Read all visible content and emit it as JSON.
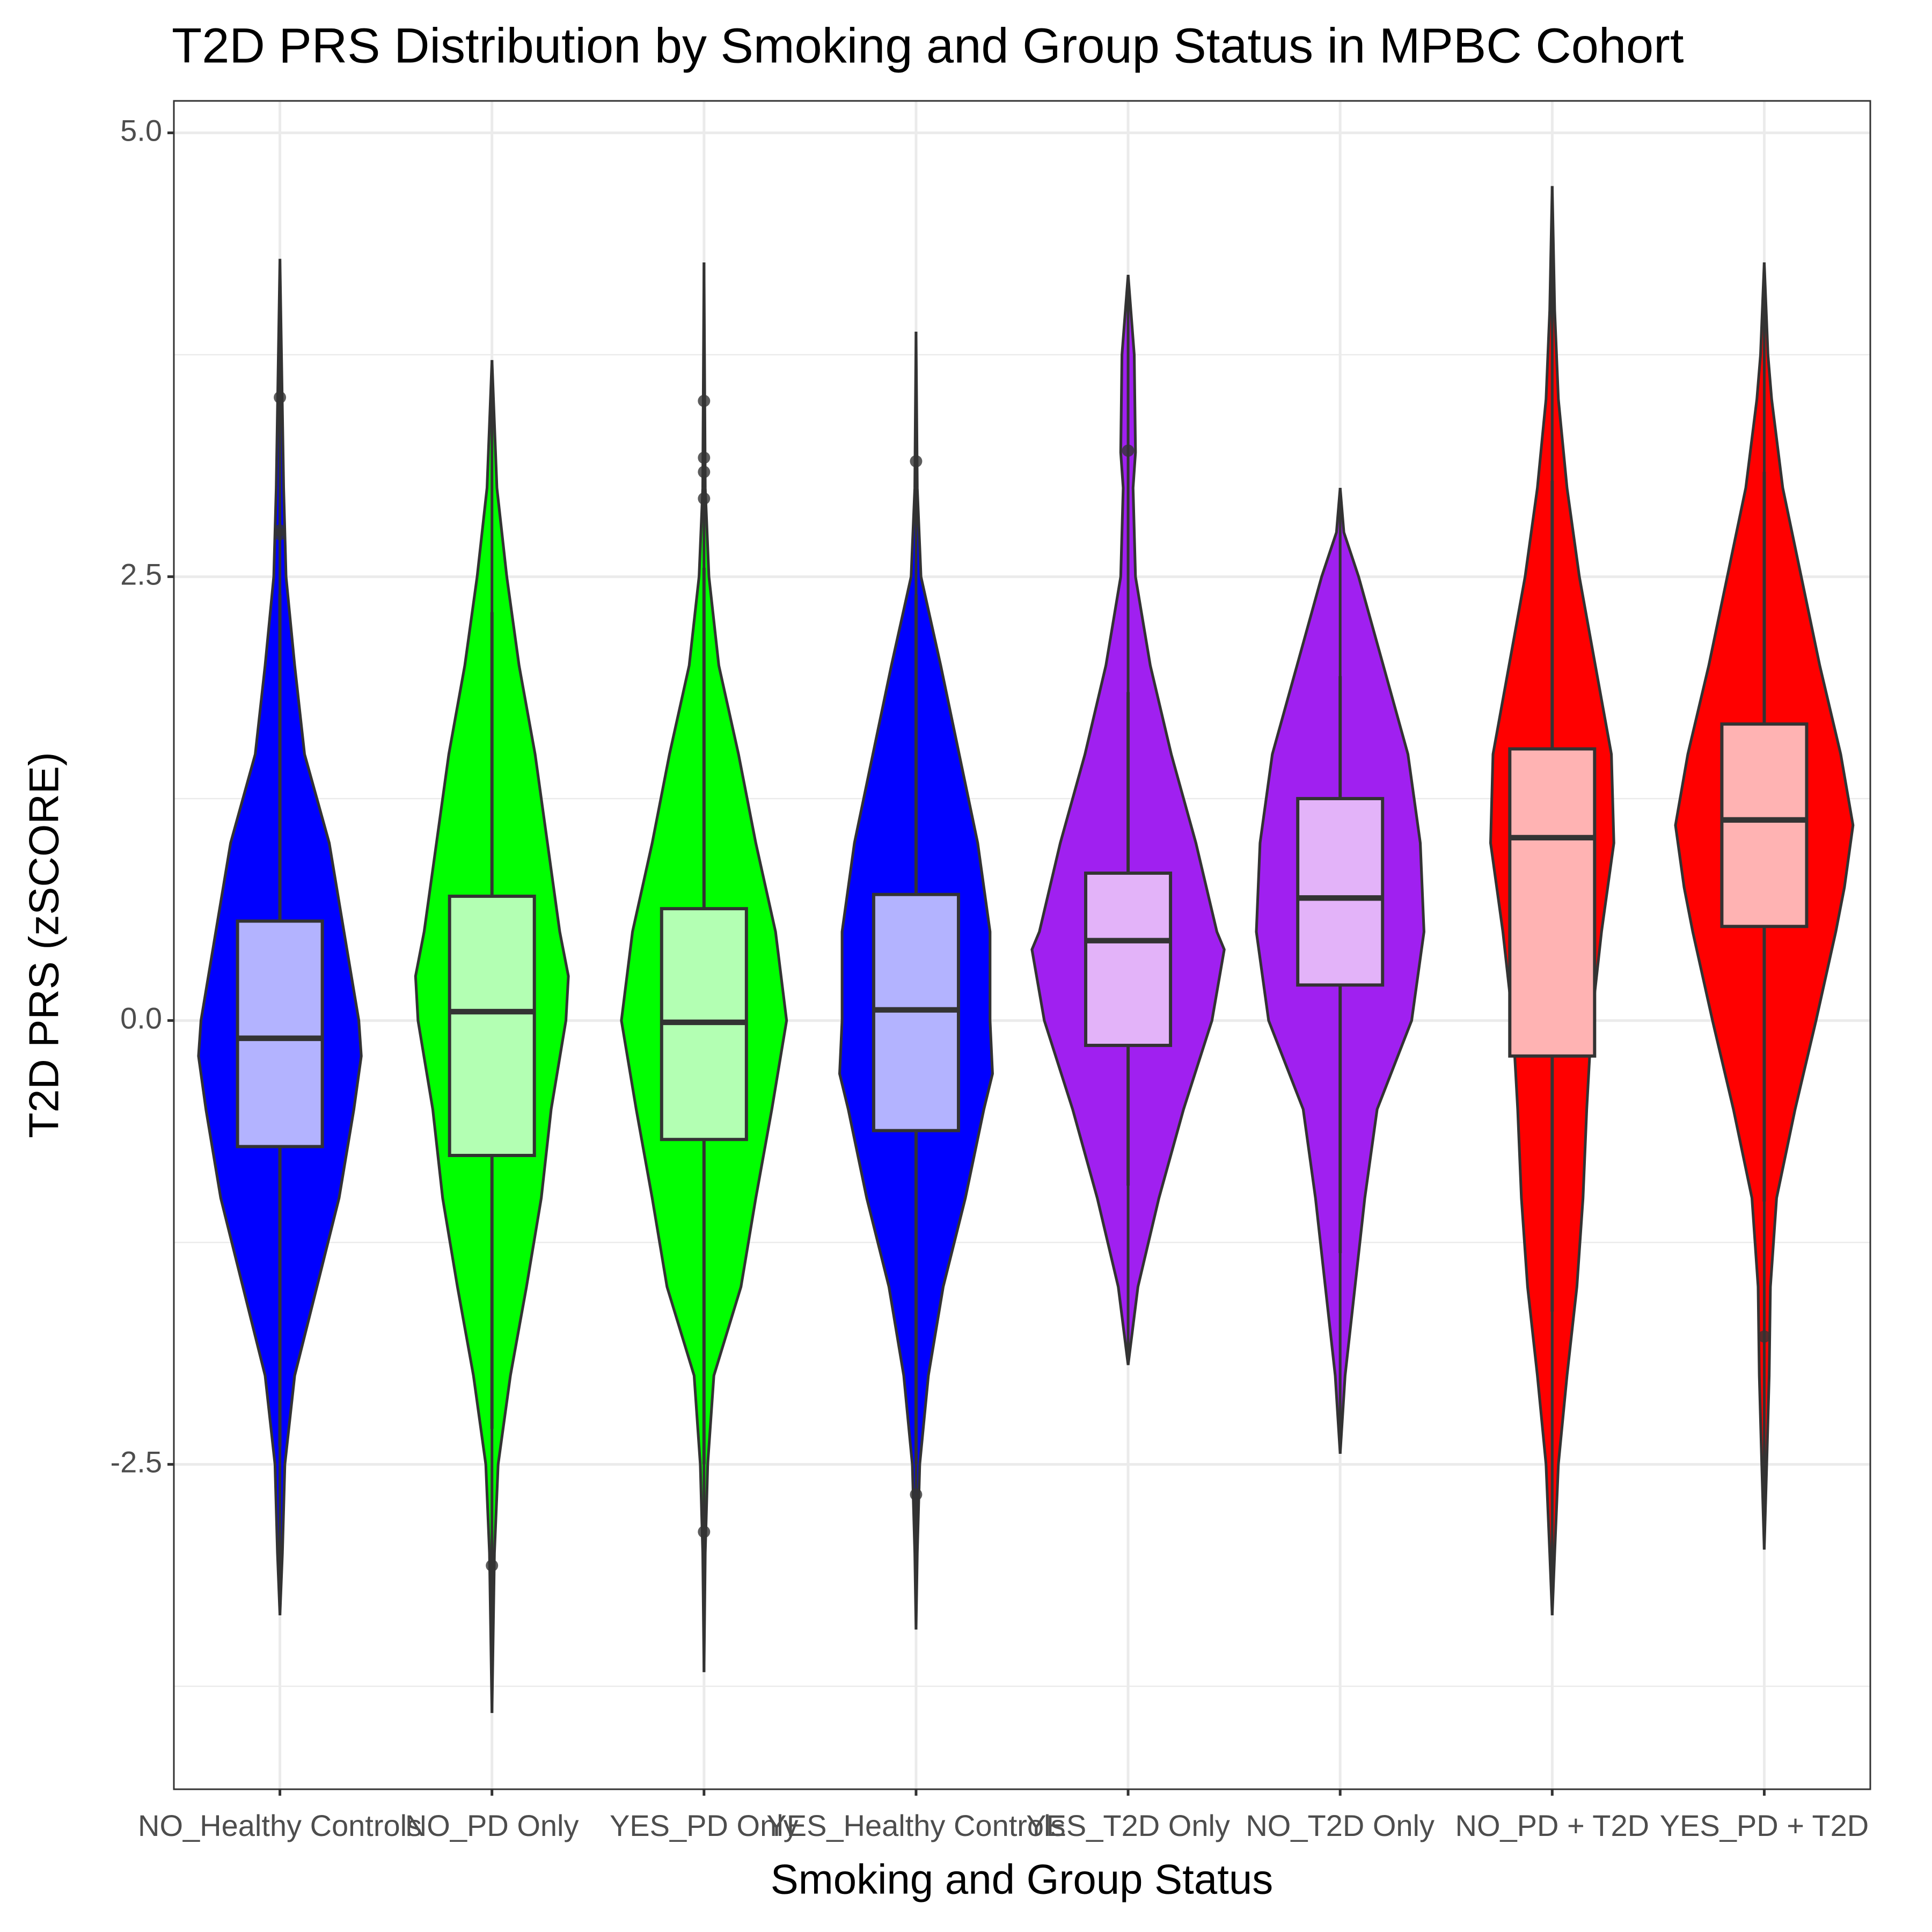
{
  "chart_data": {
    "type": "violin",
    "title": "T2D PRS Distribution by Smoking and Group Status in MPBC Cohort",
    "x_label": "Smoking and Group Status",
    "y_label": "T2D PRS (zSCORE)",
    "ylim": [
      -4.33,
      5.18
    ],
    "yticks": [
      {
        "value": -2.5,
        "label": "-2.5"
      },
      {
        "value": 0,
        "label": "0.0"
      },
      {
        "value": 2.5,
        "label": "2.5"
      },
      {
        "value": 5,
        "label": "5.0"
      }
    ],
    "minor_yticks": [
      -3.75,
      -1.25,
      1.25,
      3.75
    ],
    "grid": true,
    "categories": [
      "NO_Healthy Controls",
      "NO_PD Only",
      "YES_PD Only",
      "YES_Healthy Controls",
      "YES_T2D Only",
      "NO_T2D Only",
      "NO_PD + T2D",
      "YES_PD + T2D"
    ],
    "groups": [
      {
        "color": "#0000FF",
        "box_color": "#B3B3FF",
        "violin": {
          "y": [
            4.29,
            3,
            2.5,
            2,
            1.5,
            1,
            0.5,
            0,
            -0.2,
            -0.5,
            -1,
            -1.5,
            -2,
            -2.5,
            -3,
            -3.35
          ],
          "density": [
            0,
            3,
            5,
            12,
            20,
            40,
            52,
            64,
            66,
            60,
            48,
            30,
            12,
            4,
            2,
            0
          ]
        },
        "box": {
          "whisker_low": -2.4,
          "q1": -0.71,
          "median": -0.1,
          "q3": 0.56,
          "whisker_high": 2.4
        },
        "outliers": [
          3.51,
          2.76,
          2.74
        ]
      },
      {
        "color": "#00FF00",
        "box_color": "#B3FFB3",
        "violin": {
          "y": [
            3.72,
            3,
            2.5,
            2,
            1.5,
            1,
            0.5,
            0.25,
            0,
            -0.5,
            -1,
            -1.5,
            -2,
            -2.5,
            -3,
            -3.9
          ],
          "density": [
            0,
            4,
            12,
            22,
            35,
            45,
            55,
            62,
            60,
            48,
            40,
            28,
            15,
            5,
            2,
            0
          ]
        },
        "box": {
          "whisker_low": -2.3,
          "q1": -0.76,
          "median": 0.05,
          "q3": 0.7,
          "whisker_high": 2.3
        },
        "outliers": [
          -3.07
        ]
      },
      {
        "color": "#00FF00",
        "box_color": "#B3FFB3",
        "violin": {
          "y": [
            4.27,
            3,
            2.5,
            2,
            1.5,
            1,
            0.5,
            0,
            -0.5,
            -1,
            -1.5,
            -2,
            -2.5,
            -3,
            -3.67
          ],
          "density": [
            0,
            1,
            4,
            12,
            28,
            42,
            58,
            67,
            55,
            42,
            30,
            8,
            3,
            1,
            0
          ]
        },
        "box": {
          "whisker_low": -2.5,
          "q1": -0.67,
          "median": -0.01,
          "q3": 0.63,
          "whisker_high": 2.55
        },
        "outliers": [
          3.49,
          3.17,
          3.09,
          2.94,
          -2.88
        ]
      },
      {
        "color": "#0000FF",
        "box_color": "#B3B3FF",
        "violin": {
          "y": [
            3.88,
            3,
            2.5,
            2,
            1.5,
            1,
            0.5,
            0,
            -0.3,
            -0.5,
            -1,
            -1.5,
            -2,
            -2.5,
            -3,
            -3.43
          ],
          "density": [
            0,
            1,
            4,
            20,
            35,
            50,
            60,
            60,
            62,
            55,
            40,
            22,
            10,
            3,
            1,
            0
          ]
        },
        "box": {
          "whisker_low": -2.5,
          "q1": -0.62,
          "median": 0.06,
          "q3": 0.71,
          "whisker_high": 2.4
        },
        "outliers": [
          3.15,
          -2.67
        ]
      },
      {
        "color": "#A020F0",
        "box_color": "#E3B3F9",
        "violin": {
          "y": [
            4.2,
            3.75,
            3.2,
            3,
            2.5,
            2,
            1.5,
            1,
            0.5,
            0.4,
            0,
            -0.5,
            -1,
            -1.5,
            -1.94
          ],
          "density": [
            0,
            5,
            6,
            4,
            6,
            18,
            35,
            55,
            72,
            78,
            68,
            45,
            25,
            8,
            0
          ]
        },
        "box": {
          "whisker_low": -0.93,
          "q1": -0.14,
          "median": 0.45,
          "q3": 0.83,
          "whisker_high": 1.85
        },
        "outliers": [
          3.21
        ]
      },
      {
        "color": "#A020F0",
        "box_color": "#E3B3F9",
        "violin": {
          "y": [
            3,
            2.75,
            2.5,
            2,
            1.5,
            1,
            0.5,
            0,
            -0.5,
            -1,
            -1.5,
            -2,
            -2.44
          ],
          "density": [
            0,
            3,
            15,
            35,
            55,
            65,
            68,
            58,
            30,
            20,
            12,
            4,
            0
          ]
        },
        "box": {
          "whisker_low": -1.31,
          "q1": 0.2,
          "median": 0.69,
          "q3": 1.25,
          "whisker_high": 1.94
        },
        "outliers": []
      },
      {
        "color": "#FF0000",
        "box_color": "#FFB3B3",
        "violin": {
          "y": [
            4.7,
            4,
            3.5,
            3,
            2.5,
            2,
            1.5,
            1,
            0.5,
            0,
            -0.5,
            -1,
            -1.5,
            -2,
            -2.5,
            -3,
            -3.35
          ],
          "density": [
            0,
            2,
            5,
            12,
            22,
            35,
            48,
            50,
            40,
            32,
            28,
            25,
            20,
            12,
            5,
            2,
            0
          ]
        },
        "box": {
          "whisker_low": -1.64,
          "q1": -0.2,
          "median": 1.03,
          "q3": 1.53,
          "whisker_high": 3.04
        },
        "outliers": []
      },
      {
        "color": "#FF0000",
        "box_color": "#FFB3B3",
        "violin": {
          "y": [
            4.27,
            3.75,
            3.5,
            3,
            2.5,
            2,
            1.5,
            1.1,
            0.75,
            0.5,
            0,
            -0.5,
            -1,
            -1.5,
            -2,
            -2.5,
            -2.98
          ],
          "density": [
            0,
            3,
            6,
            15,
            30,
            45,
            62,
            72,
            65,
            58,
            42,
            25,
            10,
            5,
            4,
            2,
            0
          ]
        },
        "box": {
          "whisker_low": -1.02,
          "q1": 0.53,
          "median": 1.13,
          "q3": 1.67,
          "whisker_high": 3.09
        },
        "outliers": [
          -1.78
        ]
      }
    ]
  }
}
